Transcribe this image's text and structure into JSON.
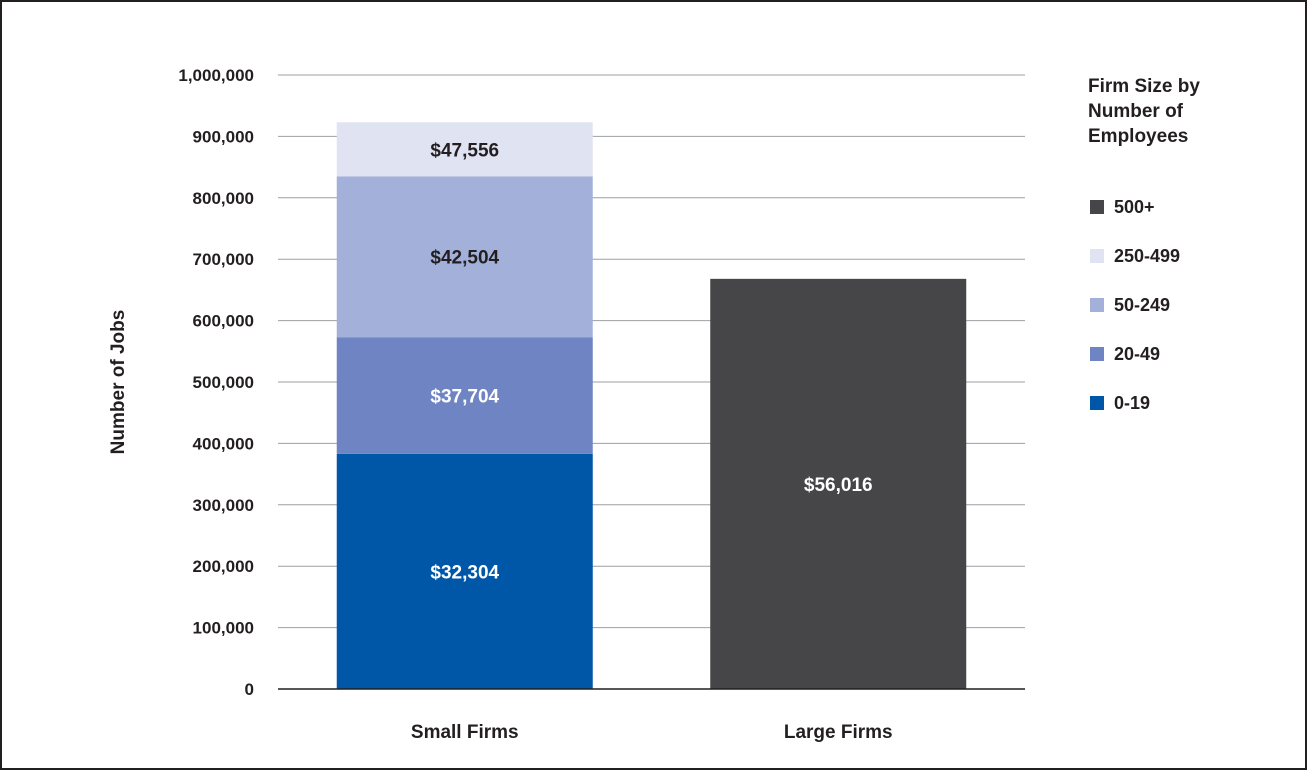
{
  "chart_data": {
    "type": "bar",
    "stacked": true,
    "ylabel": "Number of Jobs",
    "ylim": [
      0,
      1000000
    ],
    "y_ticks": [
      0,
      100000,
      200000,
      300000,
      400000,
      500000,
      600000,
      700000,
      800000,
      900000,
      1000000
    ],
    "y_tick_labels": [
      "0",
      "100,000",
      "200,000",
      "300,000",
      "400,000",
      "500,000",
      "600,000",
      "700,000",
      "800,000",
      "900,000",
      "1,000,000"
    ],
    "grid": true,
    "categories": [
      "Small Firms",
      "Large Firms"
    ],
    "legend_title": "Firm Size by Number of Employees",
    "legend_position": "right",
    "series": [
      {
        "name": "0-19",
        "color": "#0057a8",
        "label_color": "#ffffff",
        "values": [
          383000,
          0
        ],
        "labels": [
          "$32,304",
          ""
        ]
      },
      {
        "name": "20-49",
        "color": "#6f84c3",
        "label_color": "#ffffff",
        "values": [
          190000,
          0
        ],
        "labels": [
          "$37,704",
          ""
        ]
      },
      {
        "name": "50-249",
        "color": "#a3b0da",
        "label_color": "#231f20",
        "values": [
          262000,
          0
        ],
        "labels": [
          "$42,504",
          ""
        ]
      },
      {
        "name": "250-499",
        "color": "#e0e3f2",
        "label_color": "#231f20",
        "values": [
          88000,
          0
        ],
        "labels": [
          "$47,556",
          ""
        ]
      },
      {
        "name": "500+",
        "color": "#464547",
        "label_color": "#ffffff",
        "values": [
          0,
          668000
        ],
        "labels": [
          "",
          "$56,016"
        ]
      }
    ],
    "legend_order": [
      "500+",
      "250-499",
      "50-249",
      "20-49",
      "0-19"
    ]
  }
}
